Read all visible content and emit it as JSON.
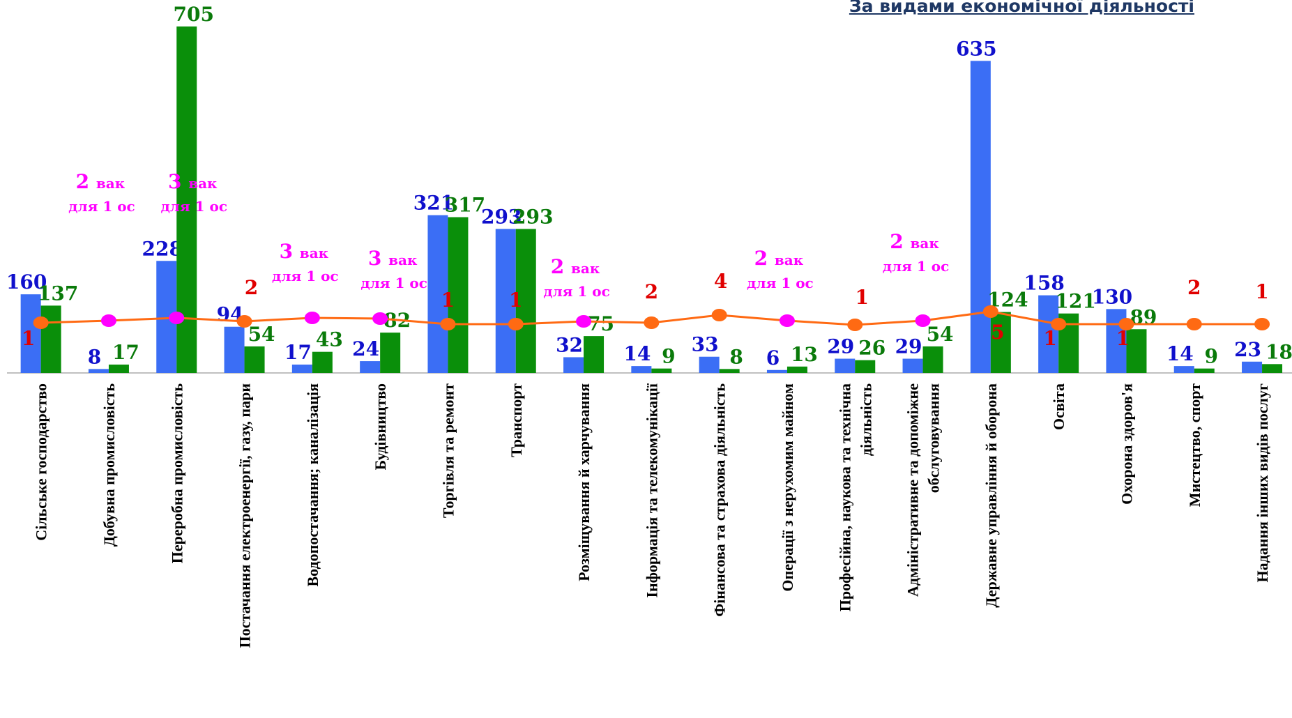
{
  "title": "За видами економічної діяльності",
  "chart_data": {
    "type": "bar",
    "categories": [
      [
        "Сільське господарство"
      ],
      [
        "Добувна промисловість"
      ],
      [
        "Переробна промисловість"
      ],
      [
        "Постачання електроенергії, газу, пари"
      ],
      [
        "Водопостачання; каналізація"
      ],
      [
        "Будівництво"
      ],
      [
        "Торгівля та ремонт"
      ],
      [
        "Транспорт"
      ],
      [
        "Розміщування й харчування"
      ],
      [
        "Інформація та телекомунікації"
      ],
      [
        "Фінансова та страхова діяльність"
      ],
      [
        "Операції з нерухомим майном"
      ],
      [
        "Професійна, наукова та технічна",
        "діяльність"
      ],
      [
        "Адміністративне та допоміжне",
        "обслуговування"
      ],
      [
        "Державне управління й оборона"
      ],
      [
        "Освіта"
      ],
      [
        "Охорона здоров'я"
      ],
      [
        "Мистецтво, спорт"
      ],
      [
        "Надання інших видів послуг"
      ]
    ],
    "series": [
      {
        "values": [
          160,
          8,
          228,
          94,
          17,
          24,
          321,
          293,
          32,
          14,
          33,
          6,
          29,
          29,
          635,
          158,
          130,
          14,
          23
        ],
        "color": "#3b6ef5",
        "label_color": "#1010cc"
      },
      {
        "values": [
          137,
          17,
          705,
          54,
          43,
          82,
          317,
          293,
          75,
          9,
          8,
          13,
          26,
          54,
          124,
          121,
          89,
          9,
          18
        ],
        "color": "#0a8f0a",
        "label_color": "#0a7a0a"
      }
    ],
    "ratio_line": {
      "color": "#ff6a13",
      "alt_marker_color": "#ff00ff",
      "points": [
        {
          "label": "1",
          "marker": "orange"
        },
        {
          "main": "2",
          "suffix": "вак",
          "sub": "для 1 ос",
          "marker": "magenta"
        },
        {
          "main": "3",
          "suffix": "вак",
          "sub": "для 1 ос",
          "marker": "magenta"
        },
        {
          "label": "2",
          "marker": "orange"
        },
        {
          "main": "3",
          "suffix": "вак",
          "sub": "для 1 ос",
          "marker": "magenta"
        },
        {
          "main": "3",
          "suffix": "вак",
          "sub": "для 1 ос",
          "marker": "magenta"
        },
        {
          "label": "1",
          "marker": "orange"
        },
        {
          "label": "1",
          "marker": "orange"
        },
        {
          "main": "2",
          "suffix": "вак",
          "sub": "для 1 ос",
          "marker": "magenta"
        },
        {
          "label": "2",
          "marker": "orange"
        },
        {
          "label": "4",
          "marker": "orange"
        },
        {
          "main": "2",
          "suffix": "вак",
          "sub": "для 1 ос",
          "marker": "magenta"
        },
        {
          "label": "1",
          "marker": "orange"
        },
        {
          "main": "2",
          "suffix": "вак",
          "sub": "для 1 ос",
          "marker": "magenta"
        },
        {
          "label": "5",
          "marker": "orange"
        },
        {
          "label": "1",
          "marker": "orange"
        },
        {
          "label": "1",
          "marker": "orange"
        },
        {
          "label": "2",
          "marker": "orange"
        },
        {
          "label": "1",
          "marker": "orange"
        }
      ]
    },
    "ylim": [
      0,
      705
    ]
  }
}
